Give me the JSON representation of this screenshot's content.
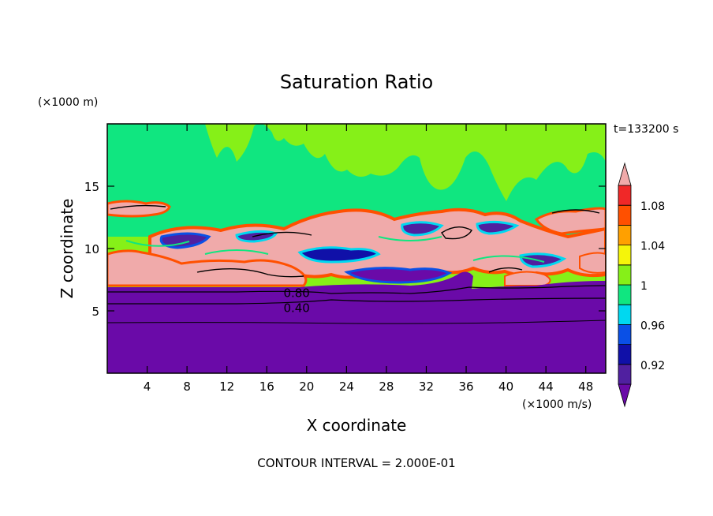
{
  "chart_data": {
    "type": "heatmap",
    "title": "Saturation Ratio",
    "xlabel": "X coordinate",
    "ylabel": "Z coordinate",
    "x_units": "(×1000 m/s)",
    "y_units": "(×1000 m)",
    "time_label": "t=133200 s",
    "footer": "CONTOUR INTERVAL = 2.000E-01",
    "xlim": [
      0,
      50
    ],
    "ylim": [
      0,
      20
    ],
    "x_ticks": [
      "4",
      "8",
      "12",
      "16",
      "20",
      "24",
      "28",
      "32",
      "36",
      "40",
      "44",
      "48"
    ],
    "y_ticks": [
      "5",
      "10",
      "15"
    ],
    "contour_labels": [
      {
        "text": "0.80",
        "x": 19.0,
        "z": 6.5
      },
      {
        "text": "0.40",
        "x": 19.0,
        "z": 5.3
      }
    ],
    "colorbar": {
      "bins": [
        {
          "lo": null,
          "hi": 0.9,
          "color": "#6a0aa8"
        },
        {
          "lo": 0.9,
          "hi": 0.92,
          "color": "#5020a0"
        },
        {
          "lo": 0.92,
          "hi": 0.94,
          "color": "#1010a8"
        },
        {
          "lo": 0.94,
          "hi": 0.96,
          "color": "#0a50e6"
        },
        {
          "lo": 0.96,
          "hi": 0.98,
          "color": "#00d8f0"
        },
        {
          "lo": 0.98,
          "hi": 1.0,
          "color": "#10e680"
        },
        {
          "lo": 1.0,
          "hi": 1.02,
          "color": "#86f018"
        },
        {
          "lo": 1.02,
          "hi": 1.04,
          "color": "#f5f50a"
        },
        {
          "lo": 1.04,
          "hi": 1.06,
          "color": "#ffa000"
        },
        {
          "lo": 1.06,
          "hi": 1.08,
          "color": "#ff5000"
        },
        {
          "lo": 1.08,
          "hi": 1.1,
          "color": "#f02828"
        },
        {
          "lo": 1.1,
          "hi": null,
          "color": "#f0aaaa"
        }
      ],
      "tick_labels": [
        "0.92",
        "0.96",
        "1",
        "1.04",
        "1.08"
      ]
    }
  }
}
